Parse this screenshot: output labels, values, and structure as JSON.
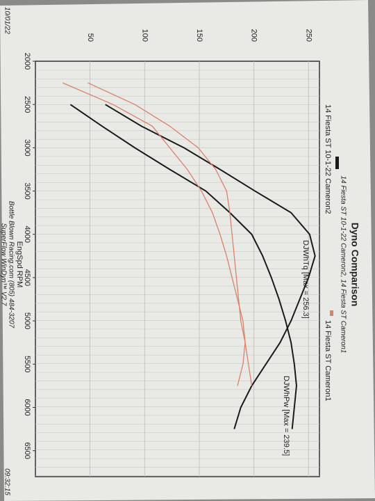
{
  "chart_data": {
    "type": "line",
    "title": "Dyno Comparison",
    "subtitle": "14 Fiesta ST 10-1-22 Cameron2, 14 Fiesta ST Cameron1",
    "x_label": "EngSpd  RPM",
    "footer_lines": [
      "Bottle Blown Racing.com (805) 484-3207",
      "SuperFlow WinDyn™ V2.7"
    ],
    "date": "10/01/22",
    "time": "09:32:15",
    "annotations": [
      "DJWhTq [Max = 256.3]",
      "DJWhPw [Max = 239.5]"
    ],
    "legend": [
      {
        "name": "14 Fiesta ST Cameron1",
        "color": "#d9826a"
      },
      {
        "name": "14 Fiesta ST 10-1-22 Cameron2",
        "color": "#1a1a1a"
      }
    ],
    "x": [
      2250,
      2500,
      2750,
      3000,
      3250,
      3500,
      3750,
      4000,
      4250,
      4500,
      4750,
      5000,
      5250,
      5500,
      5750,
      6000,
      6250
    ],
    "series": [
      {
        "name": "Cameron2 DJWhTq",
        "color": "#1a1a1a",
        "values": [
          null,
          64,
          97,
          136,
          169,
          201,
          234,
          251,
          256,
          250,
          242,
          234,
          224,
          211,
          198,
          188,
          182
        ]
      },
      {
        "name": "Cameron2 DJWhPw",
        "color": "#1a1a1a",
        "values": [
          null,
          32,
          61,
          91,
          123,
          156,
          178,
          198,
          208,
          216,
          223,
          229,
          234,
          237,
          239,
          237,
          235
        ]
      },
      {
        "name": "Cameron1 DJWhTq",
        "color": "#d9826a",
        "values": [
          48,
          91,
          123,
          149,
          165,
          175,
          178,
          180,
          182,
          184,
          186,
          188,
          192,
          195,
          198,
          null,
          null
        ]
      },
      {
        "name": "Cameron1 DJWhPw",
        "color": "#d9826a",
        "values": [
          25,
          71,
          107,
          123,
          139,
          152,
          162,
          169,
          175,
          180,
          185,
          190,
          192,
          190,
          185,
          null,
          null
        ]
      }
    ],
    "xlim": [
      2000,
      6800
    ],
    "ylim": [
      0,
      260
    ],
    "xticks": [
      2000,
      2500,
      3000,
      3500,
      4000,
      4500,
      5000,
      5500,
      6000,
      6500
    ],
    "yticks": [
      50,
      100,
      150,
      200,
      250
    ],
    "grid": true
  }
}
